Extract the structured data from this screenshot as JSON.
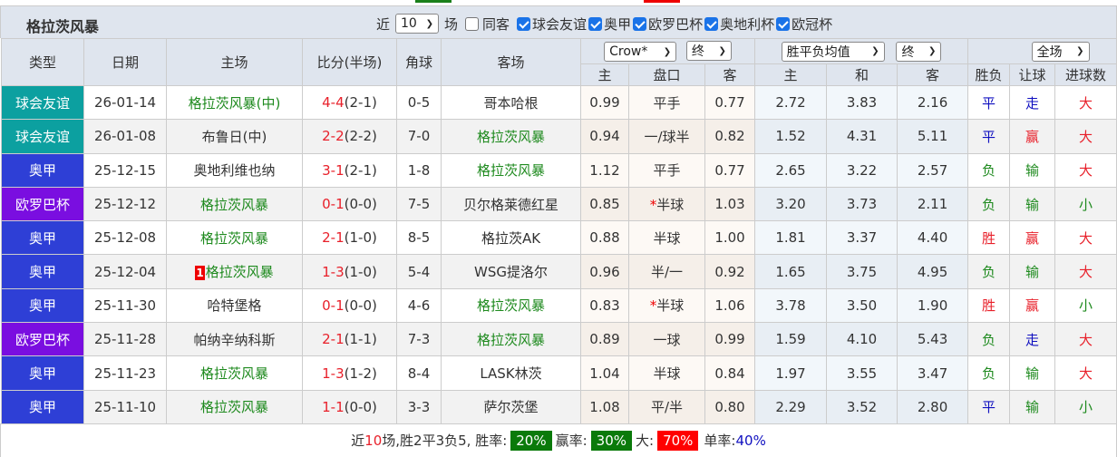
{
  "title": {
    "team": "格拉茨风暴"
  },
  "filters": {
    "recent_prefix": "近",
    "recent_count": "10",
    "recent_suffix": "场",
    "same_venue": {
      "label": "同客",
      "checked": false
    },
    "competitions": [
      {
        "label": "球会友谊",
        "checked": true
      },
      {
        "label": "奥甲",
        "checked": true
      },
      {
        "label": "欧罗巴杯",
        "checked": true
      },
      {
        "label": "奥地利杯",
        "checked": true
      },
      {
        "label": "欧冠杯",
        "checked": true
      }
    ]
  },
  "header": {
    "type": "类型",
    "date": "日期",
    "home": "主场",
    "score": "比分(半场)",
    "corner": "角球",
    "away": "客场",
    "handicap_company": "Crow*",
    "handicap_stage": "终",
    "odds_company": "胜平负均值",
    "odds_stage": "终",
    "scope": "全场",
    "hc_home": "主",
    "hc_line": "盘口",
    "hc_away": "客",
    "od_home": "主",
    "od_draw": "和",
    "od_away": "客",
    "res_wl": "胜负",
    "res_hc": "让球",
    "res_goals": "进球数"
  },
  "colors": {
    "friendly": "#0ca0a0",
    "austria": "#2e3fd6",
    "europa": "#7a0ee0",
    "win": "#e8202a",
    "draw": "#1010c0",
    "loss": "#1e8a1e"
  },
  "team_highlight": "格拉茨风暴",
  "rows": [
    {
      "type": "球会友谊",
      "type_key": "friendly",
      "date": "26-01-14",
      "home": "格拉茨风暴(中)",
      "home_rank": "",
      "score": "4-4",
      "half": "(2-1)",
      "corner": "0-5",
      "away": "哥本哈根",
      "hc_home": "0.99",
      "hc_line": "平手",
      "hc_star": "",
      "hc_away": "0.77",
      "od_home": "2.72",
      "od_draw": "3.83",
      "od_away": "2.16",
      "wl": "平",
      "hc": "走",
      "goals": "大"
    },
    {
      "type": "球会友谊",
      "type_key": "friendly",
      "date": "26-01-08",
      "home": "布鲁日(中)",
      "home_rank": "",
      "score": "2-2",
      "half": "(2-2)",
      "corner": "7-0",
      "away": "格拉茨风暴",
      "hc_home": "0.94",
      "hc_line": "一/球半",
      "hc_star": "",
      "hc_away": "0.82",
      "od_home": "1.52",
      "od_draw": "4.31",
      "od_away": "5.11",
      "wl": "平",
      "hc": "赢",
      "goals": "大"
    },
    {
      "type": "奥甲",
      "type_key": "austria",
      "date": "25-12-15",
      "home": "奥地利维也纳",
      "home_rank": "",
      "score": "3-1",
      "half": "(2-1)",
      "corner": "1-8",
      "away": "格拉茨风暴",
      "hc_home": "1.12",
      "hc_line": "平手",
      "hc_star": "",
      "hc_away": "0.77",
      "od_home": "2.65",
      "od_draw": "3.22",
      "od_away": "2.57",
      "wl": "负",
      "hc": "输",
      "goals": "大"
    },
    {
      "type": "欧罗巴杯",
      "type_key": "europa",
      "date": "25-12-12",
      "home": "格拉茨风暴",
      "home_rank": "",
      "score": "0-1",
      "half": "(0-0)",
      "corner": "7-5",
      "away": "贝尔格莱德红星",
      "hc_home": "0.85",
      "hc_line": "半球",
      "hc_star": "*",
      "hc_away": "1.03",
      "od_home": "3.20",
      "od_draw": "3.73",
      "od_away": "2.11",
      "wl": "负",
      "hc": "输",
      "goals": "小"
    },
    {
      "type": "奥甲",
      "type_key": "austria",
      "date": "25-12-08",
      "home": "格拉茨风暴",
      "home_rank": "",
      "score": "2-1",
      "half": "(1-0)",
      "corner": "8-5",
      "away": "格拉茨AK",
      "hc_home": "0.88",
      "hc_line": "半球",
      "hc_star": "",
      "hc_away": "1.00",
      "od_home": "1.81",
      "od_draw": "3.37",
      "od_away": "4.40",
      "wl": "胜",
      "hc": "赢",
      "goals": "大"
    },
    {
      "type": "奥甲",
      "type_key": "austria",
      "date": "25-12-04",
      "home": "格拉茨风暴",
      "home_rank": "1",
      "score": "1-3",
      "half": "(1-0)",
      "corner": "5-4",
      "away": "WSG提洛尔",
      "hc_home": "0.96",
      "hc_line": "半/一",
      "hc_star": "",
      "hc_away": "0.92",
      "od_home": "1.65",
      "od_draw": "3.75",
      "od_away": "4.95",
      "wl": "负",
      "hc": "输",
      "goals": "大"
    },
    {
      "type": "奥甲",
      "type_key": "austria",
      "date": "25-11-30",
      "home": "哈特堡格",
      "home_rank": "",
      "score": "0-1",
      "half": "(0-0)",
      "corner": "4-6",
      "away": "格拉茨风暴",
      "hc_home": "0.83",
      "hc_line": "半球",
      "hc_star": "*",
      "hc_away": "1.06",
      "od_home": "3.78",
      "od_draw": "3.50",
      "od_away": "1.90",
      "wl": "胜",
      "hc": "赢",
      "goals": "小"
    },
    {
      "type": "欧罗巴杯",
      "type_key": "europa",
      "date": "25-11-28",
      "home": "帕纳辛纳科斯",
      "home_rank": "",
      "score": "2-1",
      "half": "(1-1)",
      "corner": "7-3",
      "away": "格拉茨风暴",
      "hc_home": "0.89",
      "hc_line": "一球",
      "hc_star": "",
      "hc_away": "0.99",
      "od_home": "1.59",
      "od_draw": "4.10",
      "od_away": "5.43",
      "wl": "负",
      "hc": "走",
      "goals": "大"
    },
    {
      "type": "奥甲",
      "type_key": "austria",
      "date": "25-11-23",
      "home": "格拉茨风暴",
      "home_rank": "",
      "score": "1-3",
      "half": "(1-2)",
      "corner": "8-4",
      "away": "LASK林茨",
      "hc_home": "1.04",
      "hc_line": "半球",
      "hc_star": "",
      "hc_away": "0.84",
      "od_home": "1.97",
      "od_draw": "3.55",
      "od_away": "3.47",
      "wl": "负",
      "hc": "输",
      "goals": "大"
    },
    {
      "type": "奥甲",
      "type_key": "austria",
      "date": "25-11-10",
      "home": "格拉茨风暴",
      "home_rank": "",
      "score": "1-1",
      "half": "(0-0)",
      "corner": "3-3",
      "away": "萨尔茨堡",
      "hc_home": "1.08",
      "hc_line": "平/半",
      "hc_star": "",
      "hc_away": "0.80",
      "od_home": "2.29",
      "od_draw": "3.52",
      "od_away": "2.80",
      "wl": "平",
      "hc": "输",
      "goals": "小"
    }
  ],
  "summary": {
    "p1": "近",
    "count": "10",
    "p2": "场,胜2平3负5, 胜率:",
    "win_rate": "20%",
    "hc_label": "赢率:",
    "hc_rate": "30%",
    "big_label": "大:",
    "big_rate": "70%",
    "odd_label": "单率:",
    "odd_rate": "40%"
  }
}
